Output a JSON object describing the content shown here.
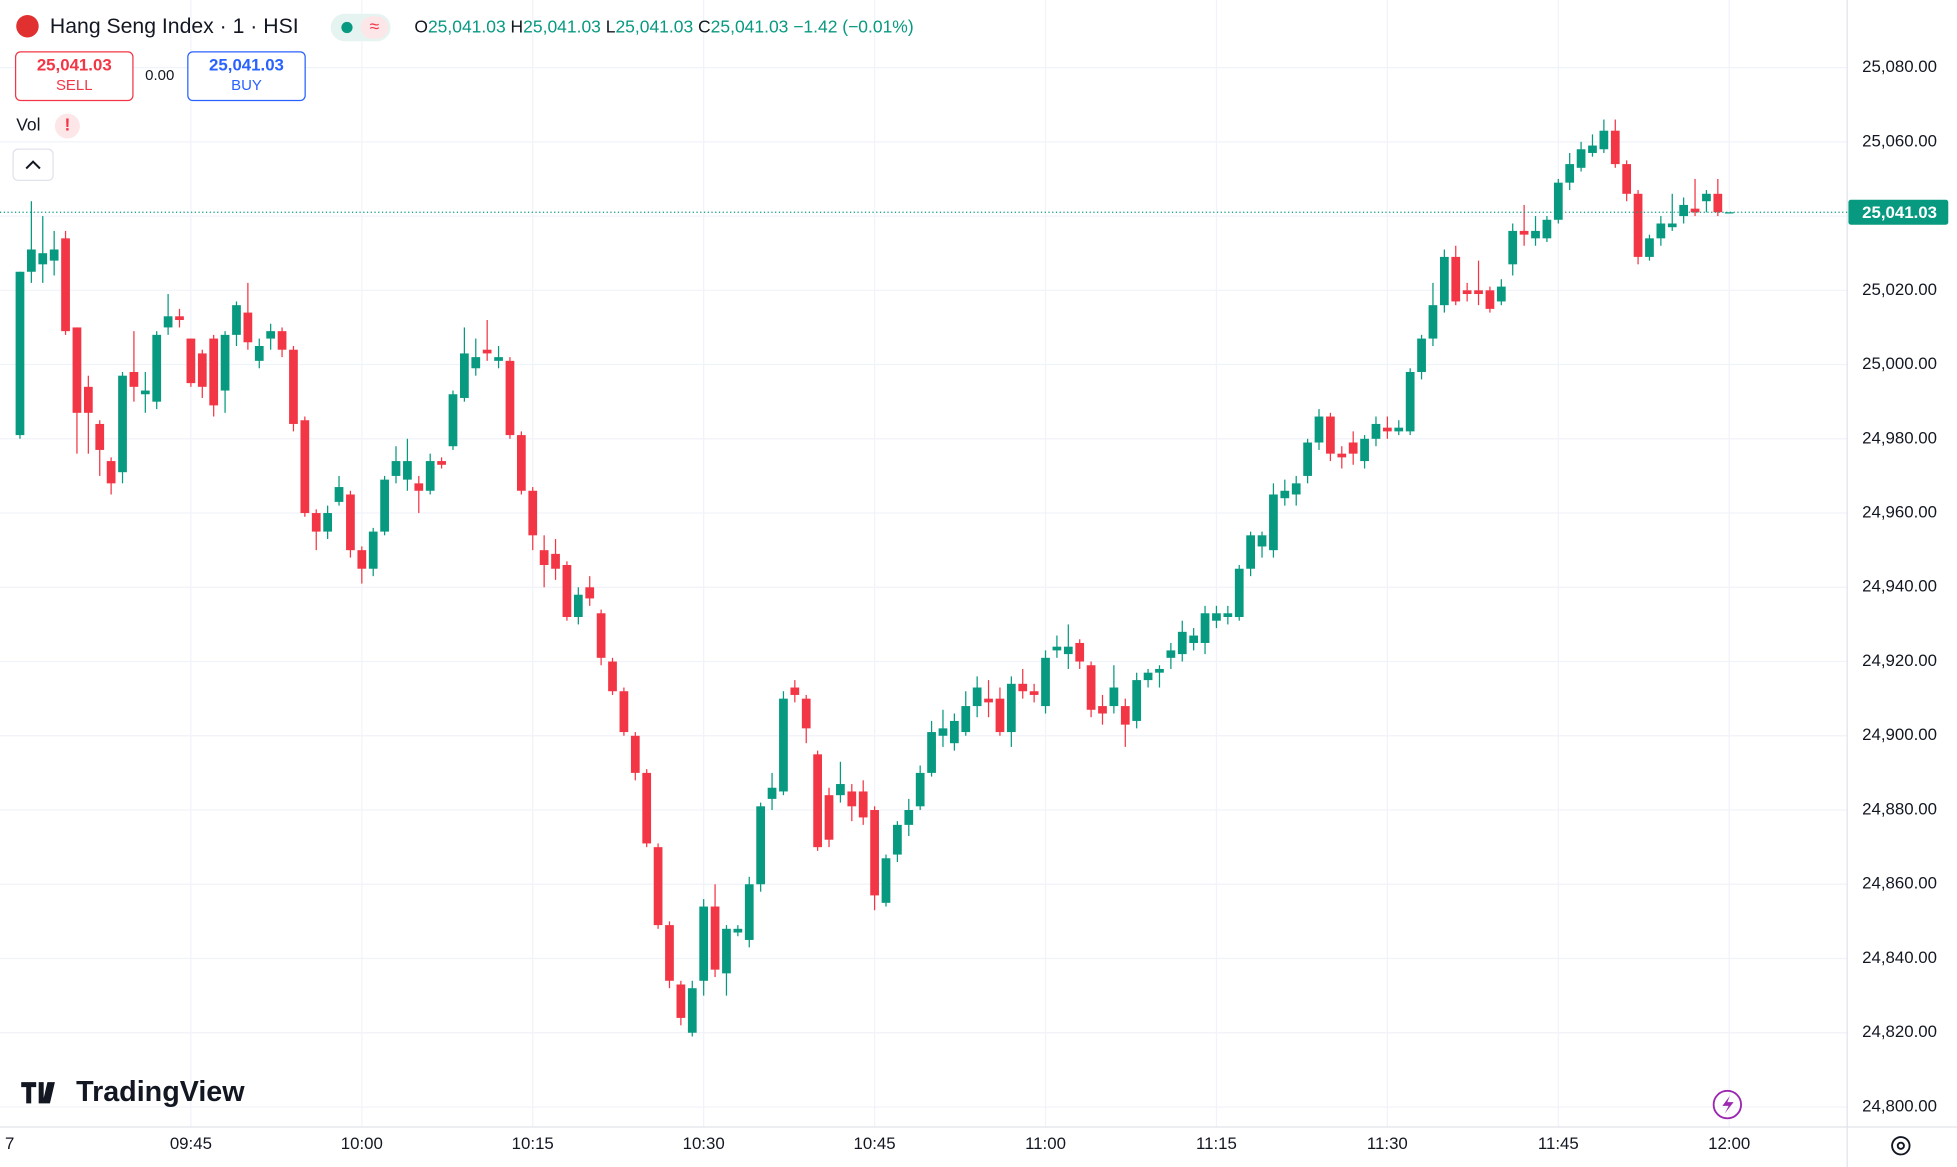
{
  "header": {
    "symbol": "Hang Seng Index · 1 · HSI",
    "o_label": "O",
    "o_value": "25,041.03",
    "h_label": "H",
    "h_value": "25,041.03",
    "l_label": "L",
    "l_value": "25,041.03",
    "c_label": "C",
    "c_value": "25,041.03",
    "change": "−1.42 (−0.01%)",
    "sell_price": "25,041.03",
    "sell": "SELL",
    "spread": "0.00",
    "buy_price": "25,041.03",
    "buy": "BUY",
    "volume": "Vol",
    "x_edge_label": "7",
    "brand": "TradingView"
  },
  "chart_data": {
    "type": "candlestick",
    "up_color": "#089981",
    "down_color": "#f23645",
    "grid": true,
    "last_price": 25041.03,
    "last_price_label": "25,041.03",
    "categories": [
      null,
      null,
      null,
      null,
      null,
      null,
      null,
      null,
      null,
      null,
      null,
      null,
      null,
      null,
      null,
      "09:45",
      null,
      null,
      null,
      null,
      null,
      null,
      null,
      null,
      null,
      null,
      null,
      null,
      null,
      null,
      "10:00",
      null,
      null,
      null,
      null,
      null,
      null,
      null,
      null,
      null,
      null,
      null,
      null,
      null,
      null,
      "10:15",
      null,
      null,
      null,
      null,
      null,
      null,
      null,
      null,
      null,
      null,
      null,
      null,
      null,
      null,
      "10:30",
      null,
      null,
      null,
      null,
      null,
      null,
      null,
      null,
      null,
      null,
      null,
      null,
      null,
      null,
      "10:45",
      null,
      null,
      null,
      null,
      null,
      null,
      null,
      null,
      null,
      null,
      null,
      null,
      null,
      null,
      "11:00",
      null,
      null,
      null,
      null,
      null,
      null,
      null,
      null,
      null,
      null,
      null,
      null,
      null,
      null,
      "11:15",
      null,
      null,
      null,
      null,
      null,
      null,
      null,
      null,
      null,
      null,
      null,
      null,
      null,
      null,
      "11:30",
      null,
      null,
      null,
      null,
      null,
      null,
      null,
      null,
      null,
      null,
      null,
      null,
      null,
      null,
      "11:45",
      null,
      null,
      null,
      null,
      null,
      null,
      null,
      null,
      null,
      null,
      null,
      null,
      null,
      null,
      "12:00"
    ],
    "open": [
      24981,
      25025,
      25027,
      25028,
      25034,
      25010,
      24994,
      24984,
      24974,
      24971,
      24998,
      24992,
      24990,
      25010,
      25013,
      25007,
      25003,
      25007,
      24993,
      25008,
      25014,
      25001,
      25007,
      25009,
      25004,
      24985,
      24960,
      24955,
      24963,
      24965,
      24950,
      24945,
      24955,
      24970,
      24969,
      24968,
      24966,
      24974,
      24978,
      24991,
      24999,
      25004,
      25001,
      25001,
      24981,
      24966,
      24950,
      24949,
      24946,
      24932,
      24940,
      24933,
      24920,
      24912,
      24900,
      24890,
      24870,
      24849,
      24833,
      24820,
      24834,
      24854,
      24836,
      24847,
      24845,
      24860,
      24883,
      24885,
      24913,
      24910,
      24895,
      24884,
      24884,
      24885,
      24885,
      24880,
      24855,
      24868,
      24876,
      24881,
      24890,
      24900,
      24898,
      24901,
      24908,
      24910,
      24910,
      24901,
      24914,
      24912,
      24908,
      24923,
      24922,
      24925,
      24919,
      24908,
      24908,
      24908,
      24904,
      24915,
      24917,
      24921,
      24922,
      24925,
      24925,
      24931,
      24932,
      24932,
      24945,
      24951,
      24950,
      24964,
      24965,
      24970,
      24979,
      24986,
      24976,
      24979,
      24974,
      24980,
      24983,
      24982,
      24982,
      24998,
      25007,
      25016,
      25029,
      25020,
      25020,
      25020,
      25017,
      25027,
      25036,
      25034,
      25034,
      25039,
      25049,
      25053,
      25057,
      25058,
      25063,
      25054,
      25046,
      25029,
      25034,
      25037,
      25040,
      25042,
      25044,
      25046,
      25041.03
    ],
    "high": [
      25025,
      25044,
      25040,
      25036,
      25036,
      25010,
      24997,
      24985,
      24975,
      24998,
      25009,
      24998,
      25009,
      25019,
      25015,
      25007,
      25004,
      25008,
      25009,
      25017,
      25022,
      25007,
      25011,
      25010,
      25005,
      24986,
      24961,
      24962,
      24970,
      24966,
      24951,
      24956,
      24970,
      24978,
      24980,
      24970,
      24976,
      24975,
      24993,
      25010,
      25007,
      25012,
      25005,
      25002,
      24982,
      24967,
      24954,
      24953,
      24947,
      24940,
      24943,
      24934,
      24921,
      24913,
      24901,
      24891,
      24871,
      24850,
      24834,
      24834,
      24856,
      24860,
      24849,
      24849,
      24862,
      24882,
      24890,
      24912,
      24915,
      24911,
      24896,
      24886,
      24893,
      24887,
      24888,
      24881,
      24868,
      24877,
      24883,
      24892,
      24904,
      24907,
      24906,
      24912,
      24916,
      24915,
      24913,
      24916,
      24918,
      24914,
      24923,
      24927,
      24930,
      24926,
      24920,
      24911,
      24919,
      24910,
      24917,
      24918,
      24919,
      24925,
      24931,
      24929,
      24935,
      24935,
      24935,
      24946,
      24955,
      24955,
      24968,
      24969,
      24970,
      24980,
      24988,
      24987,
      24978,
      24982,
      24981,
      24986,
      24986,
      24985,
      24999,
      25008,
      25022,
      25031,
      25032,
      25022,
      25028,
      25021,
      25023,
      25038,
      25043,
      25040,
      25040,
      25050,
      25057,
      25060,
      25062,
      25066,
      25066,
      25055,
      25047,
      25035,
      25040,
      25046,
      25045,
      25050,
      25047,
      25050,
      25041.03
    ],
    "low": [
      24980,
      25022,
      25022,
      25024,
      25008,
      24976,
      24976,
      24970,
      24965,
      24968,
      24990,
      24987,
      24988,
      25008,
      25010,
      24994,
      24991,
      24986,
      24987,
      25005,
      25004,
      24999,
      25004,
      25002,
      24982,
      24959,
      24950,
      24953,
      24962,
      24948,
      24941,
      24943,
      24954,
      24968,
      24966,
      24960,
      24965,
      24972,
      24977,
      24990,
      24997,
      25001,
      24999,
      24980,
      24965,
      24950,
      24940,
      24942,
      24931,
      24930,
      24935,
      24919,
      24911,
      24900,
      24888,
      24870,
      24848,
      24832,
      24822,
      24819,
      24830,
      24835,
      24830,
      24846,
      24843,
      24858,
      24880,
      24884,
      24909,
      24898,
      24869,
      24870,
      24882,
      24877,
      24876,
      24853,
      24854,
      24866,
      24873,
      24880,
      24889,
      24897,
      24896,
      24900,
      24905,
      24905,
      24900,
      24897,
      24910,
      24909,
      24906,
      24921,
      24918,
      24918,
      24905,
      24903,
      24906,
      24897,
      24902,
      24913,
      24913,
      24918,
      24920,
      24923,
      24922,
      24929,
      24930,
      24931,
      24943,
      24948,
      24948,
      24962,
      24962,
      24968,
      24977,
      24974,
      24972,
      24973,
      24972,
      24978,
      24980,
      24981,
      24981,
      24996,
      25005,
      25014,
      25016,
      25017,
      25016,
      25014,
      25016,
      25024,
      25032,
      25032,
      25033,
      25038,
      25047,
      25052,
      25056,
      25057,
      25053,
      25044,
      25027,
      25028,
      25032,
      25036,
      25038,
      25040,
      25041,
      25040,
      25041.03
    ],
    "close": [
      25025,
      25031,
      25030,
      25031,
      25009,
      24987,
      24987,
      24977,
      24968,
      24997,
      24994,
      24993,
      25008,
      25013,
      25012,
      24995,
      24994,
      24989,
      25008,
      25016,
      25006,
      25005,
      25009,
      25004,
      24984,
      24960,
      24955,
      24960,
      24967,
      24950,
      24945,
      24955,
      24969,
      24974,
      24974,
      24966,
      24974,
      24973,
      24992,
      25003,
      25002,
      25003,
      25002,
      24981,
      24966,
      24954,
      24946,
      24945,
      24932,
      24938,
      24937,
      24921,
      24912,
      24901,
      24890,
      24871,
      24849,
      24834,
      24824,
      24832,
      24854,
      24837,
      24848,
      24848,
      24860,
      24881,
      24886,
      24910,
      24911,
      24902,
      24870,
      24872,
      24887,
      24881,
      24878,
      24857,
      24867,
      24876,
      24880,
      24890,
      24901,
      24902,
      24904,
      24908,
      24913,
      24909,
      24901,
      24914,
      24912,
      24911,
      24921,
      24924,
      24924,
      24920,
      24907,
      24906,
      24913,
      24903,
      24915,
      24917,
      24918,
      24923,
      24928,
      24927,
      24933,
      24933,
      24933,
      24945,
      24954,
      24954,
      24965,
      24966,
      24968,
      24979,
      24986,
      24976,
      24975,
      24976,
      24980,
      24984,
      24982,
      24983,
      24998,
      25007,
      25016,
      25029,
      25017,
      25019,
      25019,
      25015,
      25021,
      25036,
      25035,
      25036,
      25039,
      25049,
      25054,
      25058,
      25059,
      25063,
      25054,
      25046,
      25029,
      25034,
      25038,
      25038,
      25043,
      25041,
      25046,
      25041.03,
      25041.03
    ],
    "ylim": [
      24794.6,
      25098.2
    ],
    "yticks": [
      {
        "value": 24800,
        "label": "24,800.00"
      },
      {
        "value": 24820,
        "label": "24,820.00"
      },
      {
        "value": 24840,
        "label": "24,840.00"
      },
      {
        "value": 24860,
        "label": "24,860.00"
      },
      {
        "value": 24880,
        "label": "24,880.00"
      },
      {
        "value": 24900,
        "label": "24,900.00"
      },
      {
        "value": 24920,
        "label": "24,920.00"
      },
      {
        "value": 24940,
        "label": "24,940.00"
      },
      {
        "value": 24960,
        "label": "24,960.00"
      },
      {
        "value": 24980,
        "label": "24,980.00"
      },
      {
        "value": 25000,
        "label": "25,000.00"
      },
      {
        "value": 25020,
        "label": "25,020.00"
      },
      {
        "value": 25040,
        "label": "25,040.00"
      },
      {
        "value": 25060,
        "label": "25,060.00"
      },
      {
        "value": 25080,
        "label": "25,080.00"
      }
    ]
  }
}
